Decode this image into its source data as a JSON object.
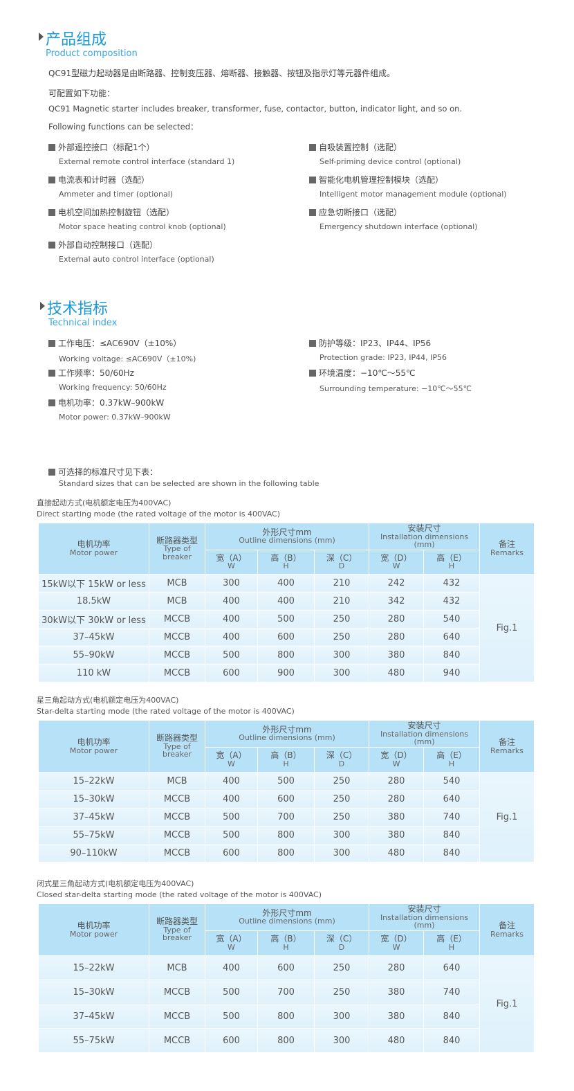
{
  "composition": {
    "title_cn": "产品组成",
    "title_en": "Product composition",
    "intro_cn": "QC91型磁力起动器是由断路器、控制变压器、熔断器、接触器、按钮及指示灯等元器件组成。",
    "config_cn": "可配置如下功能：",
    "intro_en": "QC91 Magnetic starter includes breaker, transformer, fuse, contactor, button, indicator light, and so on.",
    "config_en": "Following functions can be selected：",
    "left": [
      {
        "cn": "外部遥控接口（标配1个）",
        "en": "External remote control interface (standard 1)"
      },
      {
        "cn": "电流表和计时器（选配）",
        "en": "Ammeter and timer (optional)"
      },
      {
        "cn": "电机空间加热控制旋钮（选配）",
        "en": "Motor space heating control knob (optional)"
      },
      {
        "cn": "外部自动控制接口（选配）",
        "en": "External auto control interface (optional)"
      }
    ],
    "right": [
      {
        "cn": "自吸装置控制（选配）",
        "en": "Self-priming device control (optional)"
      },
      {
        "cn": "智能化电机管理控制模块（选配）",
        "en": "Intelligent motor management module (optional)"
      },
      {
        "cn": "应急切断接口（选配）",
        "en": "Emergency shutdown interface (optional)"
      }
    ]
  },
  "technical": {
    "title_cn": "技术指标",
    "title_en": "Technical index",
    "left": [
      {
        "cn": "工作电压：≤AC690V（±10%）",
        "en": "Working voltage: ≤AC690V（±10%)"
      },
      {
        "cn": "工作频率：50/60Hz",
        "en": "Working frequency: 50/60Hz"
      },
      {
        "cn": "电机功率：0.37kW–900kW",
        "en": "Motor power: 0.37kW–900kW"
      }
    ],
    "right": [
      {
        "cn": "防护等级：IP23、IP44、IP56",
        "en": "Protection grade: IP23, IP44, IP56"
      },
      {
        "cn": "环境温度：−10℃～55℃",
        "en": "Surrounding temperature: −10℃～55℃"
      }
    ]
  },
  "sizes": {
    "cn": "可选择的标准尺寸见下表：",
    "en": "Standard sizes that can be selected are shown in the following table"
  },
  "header": {
    "power_cn": "电机功率",
    "power_en": "Motor power",
    "breaker_cn": "断路器类型",
    "breaker_en": "Type of breaker",
    "outline_cn": "外形尺寸mm",
    "outline_en": "Outline dimensions (mm)",
    "install_cn": "安装尺寸",
    "install_en": "Installation dimensions (mm)",
    "remarks_cn": "备注",
    "remarks_en": "Remarks",
    "a": "宽（A）",
    "a_en": "W",
    "b": "高（B）",
    "b_en": "H",
    "c": "深（C）",
    "c_en": "D",
    "d": "宽（D）",
    "d_en": "W",
    "e": "高（E）",
    "e_en": "H"
  },
  "tables": [
    {
      "cap_cn": "直接起动方式(电机额定电压为400VAC)",
      "cap_en": "Direct starting mode (the rated voltage of the motor is 400VAC)",
      "remark": "Fig.1",
      "rows": [
        [
          "15kW以下 15kW or less",
          "MCB",
          "300",
          "400",
          "210",
          "242",
          "432"
        ],
        [
          "18.5kW",
          "MCB",
          "400",
          "400",
          "210",
          "342",
          "432"
        ],
        [
          "30kW以下 30kW or less",
          "MCCB",
          "400",
          "500",
          "250",
          "280",
          "540"
        ],
        [
          "37–45kW",
          "MCCB",
          "400",
          "600",
          "250",
          "280",
          "640"
        ],
        [
          "55–90kW",
          "MCCB",
          "500",
          "800",
          "300",
          "380",
          "840"
        ],
        [
          "110 kW",
          "MCCB",
          "600",
          "900",
          "300",
          "480",
          "940"
        ]
      ]
    },
    {
      "cap_cn": "星三角起动方式(电机额定电压为400VAC)",
      "cap_en": "Star-delta starting mode (the rated voltage of the motor is 400VAC)",
      "remark": "Fig.1",
      "rows": [
        [
          "15–22kW",
          "MCB",
          "400",
          "500",
          "250",
          "280",
          "540"
        ],
        [
          "15–30kW",
          "MCCB",
          "400",
          "600",
          "250",
          "280",
          "640"
        ],
        [
          "37–45kW",
          "MCCB",
          "500",
          "700",
          "250",
          "380",
          "740"
        ],
        [
          "55–75kW",
          "MCCB",
          "500",
          "800",
          "300",
          "380",
          "840"
        ],
        [
          "90–110kW",
          "MCCB",
          "600",
          "800",
          "300",
          "480",
          "840"
        ]
      ]
    },
    {
      "cap_cn": "闭式星三角起动方式(电机额定电压为400VAC)",
      "cap_en": "Closed star-delta starting mode (the rated voltage of the motor is 400VAC)",
      "remark": "Fig.1",
      "rows": [
        [
          "15–22kW",
          "MCB",
          "400",
          "600",
          "250",
          "280",
          "640"
        ],
        [
          "15–30kW",
          "MCCB",
          "500",
          "700",
          "250",
          "380",
          "740"
        ],
        [
          "37–45kW",
          "MCCB",
          "500",
          "800",
          "300",
          "380",
          "840"
        ],
        [
          "55–75kW",
          "MCCB",
          "600",
          "800",
          "300",
          "480",
          "840"
        ]
      ]
    }
  ]
}
